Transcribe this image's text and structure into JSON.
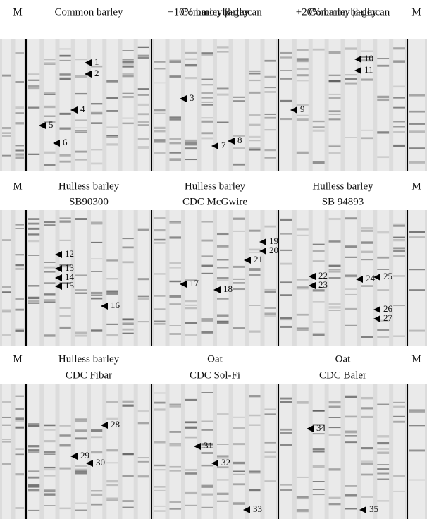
{
  "rows": [
    {
      "marker_left": "M",
      "marker_right": "M",
      "panels": [
        {
          "title": [
            "Common barley"
          ],
          "bands": [
            "1",
            "2",
            "4",
            "5",
            "6"
          ]
        },
        {
          "title": [
            "Common barley",
            "+10% barley β-glucan"
          ],
          "bands": [
            "3",
            "7",
            "8"
          ]
        },
        {
          "title": [
            "Common barley",
            "+20% barley β-glucan"
          ],
          "bands": [
            "9",
            "10",
            "11"
          ]
        }
      ]
    },
    {
      "marker_left": "M",
      "marker_right": "M",
      "panels": [
        {
          "title": [
            "Hulless barley",
            "SB90300"
          ],
          "bands": [
            "12",
            "13",
            "14",
            "15",
            "16"
          ]
        },
        {
          "title": [
            "Hulless barley",
            "CDC McGwire"
          ],
          "bands": [
            "17",
            "18",
            "19",
            "20",
            "21"
          ]
        },
        {
          "title": [
            "Hulless barley",
            "SB 94893"
          ],
          "bands": [
            "22",
            "23",
            "24",
            "25",
            "26",
            "27"
          ]
        }
      ]
    },
    {
      "marker_left": "M",
      "marker_right": "M",
      "panels": [
        {
          "title": [
            "Hulless barley",
            "CDC Fibar"
          ],
          "bands": [
            "28",
            "29",
            "30"
          ]
        },
        {
          "title": [
            "Oat",
            "CDC Sol-Fi"
          ],
          "bands": [
            "31",
            "32",
            "33"
          ]
        },
        {
          "title": [
            "Oat",
            "CDC Baler"
          ],
          "bands": [
            "34",
            "35"
          ]
        }
      ]
    }
  ]
}
